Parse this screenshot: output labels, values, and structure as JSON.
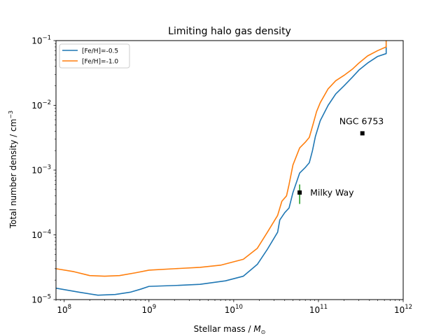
{
  "chart_data": {
    "type": "line",
    "title": "Limiting halo gas density",
    "xlabel": "Stellar mass / ",
    "xlabel_symbol": "M",
    "xlabel_sub": "⊙",
    "ylabel": "Total number density / cm",
    "ylabel_sup": "−3",
    "xscale": "log",
    "yscale": "log",
    "xlim": [
      80000000.0,
      1000000000000.0
    ],
    "ylim": [
      1e-05,
      0.1
    ],
    "x_ticks": [
      {
        "value": 100000000.0,
        "base": "10",
        "exp": "8"
      },
      {
        "value": 1000000000.0,
        "base": "10",
        "exp": "9"
      },
      {
        "value": 10000000000.0,
        "base": "10",
        "exp": "10"
      },
      {
        "value": 100000000000.0,
        "base": "10",
        "exp": "11"
      },
      {
        "value": 1000000000000.0,
        "base": "10",
        "exp": "12"
      }
    ],
    "y_ticks": [
      {
        "value": 1e-05,
        "base": "10",
        "exp": "−5"
      },
      {
        "value": 0.0001,
        "base": "10",
        "exp": "−4"
      },
      {
        "value": 0.001,
        "base": "10",
        "exp": "−3"
      },
      {
        "value": 0.01,
        "base": "10",
        "exp": "−2"
      },
      {
        "value": 0.1,
        "base": "10",
        "exp": "−1"
      }
    ],
    "legend_position": "top-left",
    "series": [
      {
        "name": "[Fe/H]=-0.5",
        "color": "#1f77b4",
        "x": [
          80000000.0,
          150000000.0,
          250000000.0,
          400000000.0,
          600000000.0,
          800000000.0,
          1000000000.0,
          2000000000.0,
          4000000000.0,
          8000000000.0,
          13000000000.0,
          19000000000.0,
          25000000000.0,
          33000000000.0,
          35000000000.0,
          40000000000.0,
          45000000000.0,
          50000000000.0,
          60000000000.0,
          70000000000.0,
          78000000000.0,
          85000000000.0,
          92000000000.0,
          105000000000.0,
          130000000000.0,
          160000000000.0,
          200000000000.0,
          250000000000.0,
          300000000000.0,
          380000000000.0,
          500000000000.0,
          630000000000.0,
          630000000000.0
        ],
        "y": [
          1.5e-05,
          1.3e-05,
          1.17e-05,
          1.2e-05,
          1.3e-05,
          1.45e-05,
          1.6e-05,
          1.65e-05,
          1.72e-05,
          1.95e-05,
          2.3e-05,
          3.5e-05,
          6e-05,
          0.00011,
          0.00017,
          0.00022,
          0.00026,
          0.00045,
          0.0009,
          0.0011,
          0.0013,
          0.002,
          0.0033,
          0.0058,
          0.01,
          0.015,
          0.02,
          0.027,
          0.035,
          0.045,
          0.057,
          0.063,
          0.1
        ]
      },
      {
        "name": "[Fe/H]=-1.0",
        "color": "#ff7f0e",
        "x": [
          80000000.0,
          130000000.0,
          200000000.0,
          300000000.0,
          450000000.0,
          700000000.0,
          1000000000.0,
          2000000000.0,
          4000000000.0,
          7000000000.0,
          13000000000.0,
          19000000000.0,
          25000000000.0,
          33000000000.0,
          37000000000.0,
          42000000000.0,
          45000000000.0,
          50000000000.0,
          60000000000.0,
          70000000000.0,
          78000000000.0,
          86000000000.0,
          95000000000.0,
          105000000000.0,
          130000000000.0,
          160000000000.0,
          200000000000.0,
          250000000000.0,
          300000000000.0,
          380000000000.0,
          500000000000.0,
          630000000000.0,
          630000000000.0
        ],
        "y": [
          3e-05,
          2.7e-05,
          2.35e-05,
          2.3e-05,
          2.35e-05,
          2.6e-05,
          2.85e-05,
          3e-05,
          3.15e-05,
          3.4e-05,
          4.2e-05,
          6.2e-05,
          0.00011,
          0.0002,
          0.00033,
          0.0004,
          0.0006,
          0.0012,
          0.0022,
          0.0027,
          0.0032,
          0.005,
          0.008,
          0.011,
          0.018,
          0.024,
          0.029,
          0.036,
          0.045,
          0.058,
          0.07,
          0.08,
          0.1
        ]
      }
    ],
    "points": [
      {
        "name": "Milky Way",
        "x": 60000000000.0,
        "y": 0.00045,
        "err_low": 0.0003,
        "err_high": 0.0006,
        "err_color": "#2ca02c"
      },
      {
        "name": "NGC 6753",
        "x": 330000000000.0,
        "y": 0.0037
      }
    ]
  }
}
